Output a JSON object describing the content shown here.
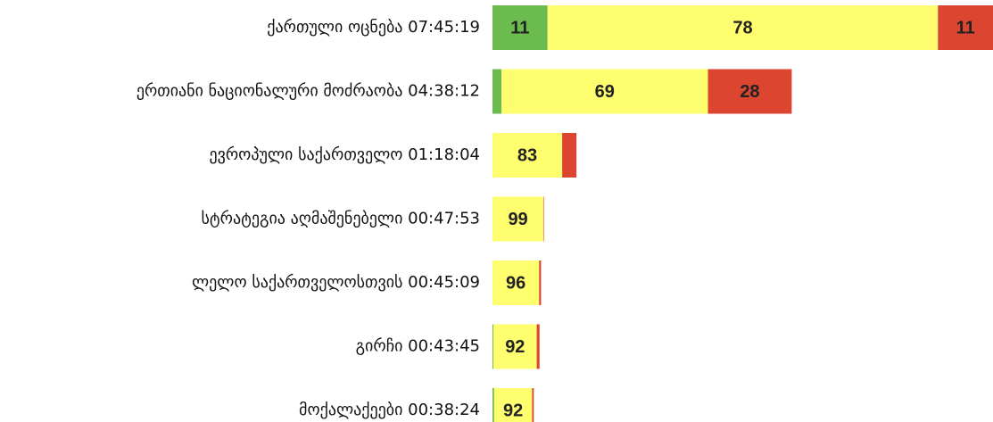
{
  "chart_data": {
    "type": "stacked-barh",
    "categories": [
      "ქართული ოცნება",
      "ერთიანი ნაციონალური მოძრაობა",
      "ევროპული საქართველო",
      "სტრატეგია აღმაშენებელი",
      "ლელო საქართველოსთვის",
      "გირჩი",
      "მოქალაქეები"
    ],
    "durations": [
      {
        "value": 27919,
        "label": "07:45:19"
      },
      {
        "value": 16692,
        "label": "04:38:12"
      },
      {
        "value": 4684,
        "label": "01:18:04"
      },
      {
        "value": 2873,
        "label": "00:47:53"
      },
      {
        "value": 2709,
        "label": "00:45:09"
      },
      {
        "value": 2625,
        "label": "00:43:45"
      },
      {
        "value": 2304,
        "label": "00:38:24"
      }
    ],
    "series": [
      {
        "color": "#6cbb4f",
        "values": [
          11,
          3,
          0,
          0,
          0,
          2,
          4
        ]
      },
      {
        "color": "#fefe6e",
        "values": [
          78,
          69,
          83,
          99,
          96,
          92,
          92
        ]
      },
      {
        "color": "#dc4631",
        "values": [
          11,
          28,
          17,
          1,
          4,
          6,
          4
        ]
      }
    ]
  }
}
